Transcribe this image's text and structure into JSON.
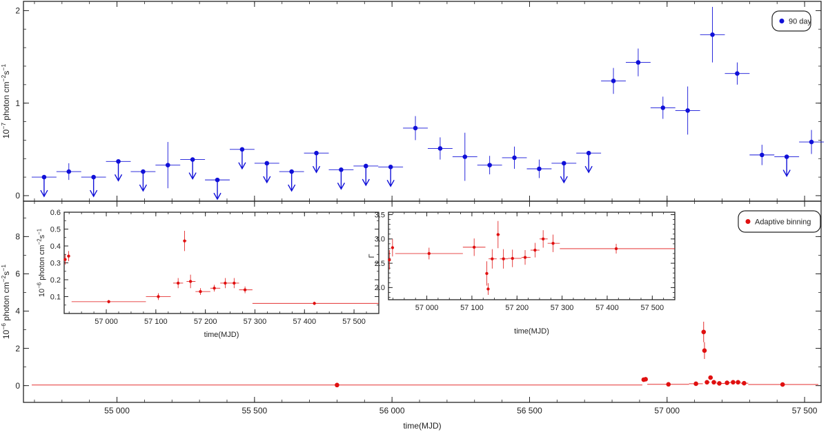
{
  "colors": {
    "blue": "#1010d8",
    "red": "#e01010",
    "axis": "#222222"
  },
  "chart_data": [
    {
      "id": "top",
      "type": "scatter",
      "legend": {
        "label": "90 day",
        "placement": "top-right"
      },
      "ylabel": {
        "prefix": "10",
        "exp": "−7",
        "text": " photon cm",
        "exp2": "−2",
        "mid": "s",
        "exp3": "−1"
      },
      "xlim": [
        54660,
        57560
      ],
      "ylim": [
        -0.06,
        2.1
      ],
      "yticks": [
        {
          "v": 0,
          "t": "0"
        },
        {
          "v": 1,
          "t": "1"
        },
        {
          "v": 2,
          "t": "2"
        }
      ],
      "series": [
        {
          "points": [
            {
              "x": 54735,
              "y": 0.2,
              "dx": 45,
              "ul": true
            },
            {
              "x": 54825,
              "y": 0.26,
              "dx": 45,
              "ey": 0.09
            },
            {
              "x": 54915,
              "y": 0.2,
              "dx": 45,
              "ul": true
            },
            {
              "x": 55005,
              "y": 0.37,
              "dx": 45,
              "ul": true
            },
            {
              "x": 55095,
              "y": 0.26,
              "dx": 45,
              "ul": true
            },
            {
              "x": 55185,
              "y": 0.33,
              "dx": 45,
              "ey": 0.25
            },
            {
              "x": 55275,
              "y": 0.39,
              "dx": 45,
              "ul": true
            },
            {
              "x": 55365,
              "y": 0.17,
              "dx": 45,
              "ul": true
            },
            {
              "x": 55455,
              "y": 0.5,
              "dx": 45,
              "ul": true
            },
            {
              "x": 55545,
              "y": 0.35,
              "dx": 45,
              "ul": true
            },
            {
              "x": 55635,
              "y": 0.26,
              "dx": 45,
              "ul": true
            },
            {
              "x": 55725,
              "y": 0.46,
              "dx": 45,
              "ul": true
            },
            {
              "x": 55815,
              "y": 0.28,
              "dx": 45,
              "ul": true
            },
            {
              "x": 55905,
              "y": 0.32,
              "dx": 45,
              "ul": true
            },
            {
              "x": 55995,
              "y": 0.31,
              "dx": 45,
              "ul": true
            },
            {
              "x": 56085,
              "y": 0.73,
              "dx": 45,
              "ey": 0.13
            },
            {
              "x": 56175,
              "y": 0.51,
              "dx": 45,
              "ey": 0.12
            },
            {
              "x": 56265,
              "y": 0.42,
              "dx": 45,
              "ey": 0.26
            },
            {
              "x": 56355,
              "y": 0.33,
              "dx": 45,
              "ey": 0.1
            },
            {
              "x": 56445,
              "y": 0.41,
              "dx": 45,
              "ey": 0.12
            },
            {
              "x": 56535,
              "y": 0.29,
              "dx": 45,
              "ey": 0.1
            },
            {
              "x": 56625,
              "y": 0.35,
              "dx": 45,
              "ul": true
            },
            {
              "x": 56715,
              "y": 0.46,
              "dx": 45,
              "ul": true
            },
            {
              "x": 56805,
              "y": 1.24,
              "dx": 45,
              "ey": 0.14
            },
            {
              "x": 56895,
              "y": 1.44,
              "dx": 45,
              "ey": 0.15
            },
            {
              "x": 56985,
              "y": 0.95,
              "dx": 45,
              "ey": 0.12
            },
            {
              "x": 57075,
              "y": 0.92,
              "dx": 45,
              "ey": 0.26
            },
            {
              "x": 57165,
              "y": 1.74,
              "dx": 45,
              "ey": 0.3
            },
            {
              "x": 57255,
              "y": 1.32,
              "dx": 45,
              "ey": 0.12
            },
            {
              "x": 57345,
              "y": 0.44,
              "dx": 45,
              "ey": 0.11
            },
            {
              "x": 57435,
              "y": 0.42,
              "dx": 45,
              "ul": true
            },
            {
              "x": 57525,
              "y": 0.58,
              "dx": 45,
              "ey": 0.13
            }
          ]
        }
      ]
    },
    {
      "id": "bottom",
      "type": "scatter",
      "legend": {
        "label": "Adaptive binning",
        "placement": "top-right"
      },
      "ylabel": {
        "prefix": "10",
        "exp": "−6",
        "text": " photon cm",
        "exp2": "−2",
        "mid": "s",
        "exp3": "−1"
      },
      "xlabel": "time(MJD)",
      "xlim": [
        54660,
        57560
      ],
      "ylim": [
        -0.9,
        9.9
      ],
      "yticks": [
        {
          "v": 0,
          "t": "0"
        },
        {
          "v": 2,
          "t": "2"
        },
        {
          "v": 4,
          "t": "4"
        },
        {
          "v": 6,
          "t": "6"
        },
        {
          "v": 8,
          "t": "8"
        }
      ],
      "xticks": [
        {
          "v": 55000,
          "t": "55 000"
        },
        {
          "v": 55500,
          "t": "55 500"
        },
        {
          "v": 56000,
          "t": "56 000"
        },
        {
          "v": 56500,
          "t": "56 500"
        },
        {
          "v": 57000,
          "t": "57 000"
        },
        {
          "v": 57500,
          "t": "57 500"
        }
      ],
      "series": [
        {
          "points": [
            {
              "x": 55800,
              "y": 0.03,
              "x0": 54690,
              "x1": 56910
            },
            {
              "x": 56915,
              "y": 0.32,
              "x0": 56913,
              "x1": 56917
            },
            {
              "x": 56922,
              "y": 0.34,
              "x0": 56919,
              "x1": 56925
            },
            {
              "x": 57005,
              "y": 0.07,
              "x0": 56928,
              "x1": 57080
            },
            {
              "x": 57105,
              "y": 0.1,
              "x0": 57080,
              "x1": 57130
            },
            {
              "x": 57133,
              "y": 2.88,
              "x0": 57131,
              "x1": 57135,
              "ey": 0.55
            },
            {
              "x": 57136,
              "y": 1.88,
              "x0": 57135,
              "x1": 57137,
              "ey": 0.45
            },
            {
              "x": 57145,
              "y": 0.18,
              "x0": 57137,
              "x1": 57155
            },
            {
              "x": 57158,
              "y": 0.43,
              "x0": 57155,
              "x1": 57162
            },
            {
              "x": 57170,
              "y": 0.18,
              "x0": 57162,
              "x1": 57180
            },
            {
              "x": 57190,
              "y": 0.12,
              "x0": 57180,
              "x1": 57210
            },
            {
              "x": 57218,
              "y": 0.15,
              "x0": 57210,
              "x1": 57230
            },
            {
              "x": 57240,
              "y": 0.18,
              "x0": 57230,
              "x1": 57250
            },
            {
              "x": 57258,
              "y": 0.18,
              "x0": 57250,
              "x1": 57268
            },
            {
              "x": 57280,
              "y": 0.13,
              "x0": 57268,
              "x1": 57295
            },
            {
              "x": 57420,
              "y": 0.06,
              "x0": 57295,
              "x1": 57550
            }
          ]
        }
      ]
    },
    {
      "id": "inset-flux",
      "type": "scatter",
      "ylabel": {
        "prefix": "10",
        "exp": "−6",
        "text": " photon cm",
        "exp2": "−2",
        "mid": "s",
        "exp3": "−1"
      },
      "xlabel": "time(MJD)",
      "xlim": [
        56915,
        57550
      ],
      "ylim": [
        0,
        0.6
      ],
      "yticks": [
        {
          "v": 0.1,
          "t": "0.1"
        },
        {
          "v": 0.2,
          "t": "0.2"
        },
        {
          "v": 0.3,
          "t": "0.3"
        },
        {
          "v": 0.4,
          "t": "0.4"
        },
        {
          "v": 0.5,
          "t": "0.5"
        },
        {
          "v": 0.6,
          "t": "0.6"
        }
      ],
      "xticks": [
        {
          "v": 57000,
          "t": "57 000"
        },
        {
          "v": 57100,
          "t": "57 100"
        },
        {
          "v": 57200,
          "t": "57 200"
        },
        {
          "v": 57300,
          "t": "57 300"
        },
        {
          "v": 57400,
          "t": "57 400"
        },
        {
          "v": 57500,
          "t": "57 500"
        }
      ],
      "series": [
        {
          "points": [
            {
              "x": 56917,
              "y": 0.32,
              "x0": 56915,
              "x1": 56919,
              "ey": 0.03
            },
            {
              "x": 56924,
              "y": 0.34,
              "x0": 56921,
              "x1": 56927,
              "ey": 0.03
            },
            {
              "x": 57005,
              "y": 0.07,
              "x0": 56930,
              "x1": 57080,
              "ey": 0.01
            },
            {
              "x": 57105,
              "y": 0.1,
              "x0": 57080,
              "x1": 57130,
              "ey": 0.02
            },
            {
              "x": 57145,
              "y": 0.18,
              "x0": 57135,
              "x1": 57155,
              "ey": 0.03
            },
            {
              "x": 57158,
              "y": 0.43,
              "x0": 57155,
              "x1": 57162,
              "ey": 0.06
            },
            {
              "x": 57170,
              "y": 0.19,
              "x0": 57162,
              "x1": 57180,
              "ey": 0.04
            },
            {
              "x": 57190,
              "y": 0.13,
              "x0": 57180,
              "x1": 57210,
              "ey": 0.02
            },
            {
              "x": 57218,
              "y": 0.15,
              "x0": 57210,
              "x1": 57230,
              "ey": 0.02
            },
            {
              "x": 57240,
              "y": 0.18,
              "x0": 57230,
              "x1": 57250,
              "ey": 0.03
            },
            {
              "x": 57258,
              "y": 0.18,
              "x0": 57250,
              "x1": 57268,
              "ey": 0.03
            },
            {
              "x": 57280,
              "y": 0.14,
              "x0": 57268,
              "x1": 57295,
              "ey": 0.02
            },
            {
              "x": 57420,
              "y": 0.06,
              "x0": 57295,
              "x1": 57550,
              "ey": 0.01
            }
          ]
        }
      ]
    },
    {
      "id": "inset-index",
      "type": "scatter",
      "ylabel": {
        "text": "Γ"
      },
      "xlabel": "time(MJD)",
      "xlim": [
        56915,
        57550
      ],
      "ylim": [
        1.75,
        3.55
      ],
      "yticks": [
        {
          "v": 2.0,
          "t": "2.0"
        },
        {
          "v": 2.5,
          "t": "2.5"
        },
        {
          "v": 3.0,
          "t": "3.0"
        },
        {
          "v": 3.5,
          "t": "3.5"
        }
      ],
      "xticks": [
        {
          "v": 57000,
          "t": "57 000"
        },
        {
          "v": 57100,
          "t": "57 100"
        },
        {
          "v": 57200,
          "t": "57 200"
        },
        {
          "v": 57300,
          "t": "57 300"
        },
        {
          "v": 57400,
          "t": "57 400"
        },
        {
          "v": 57500,
          "t": "57 500"
        }
      ],
      "series": [
        {
          "points": [
            {
              "x": 56917,
              "y": 2.57,
              "x0": 56915,
              "x1": 56919,
              "ey": 0.2
            },
            {
              "x": 56924,
              "y": 2.82,
              "x0": 56921,
              "x1": 56927,
              "ey": 0.18
            },
            {
              "x": 57005,
              "y": 2.7,
              "x0": 56930,
              "x1": 57080,
              "ey": 0.12
            },
            {
              "x": 57105,
              "y": 2.83,
              "x0": 57080,
              "x1": 57130,
              "ey": 0.18
            },
            {
              "x": 57133,
              "y": 2.29,
              "x0": 57131,
              "x1": 57135,
              "ey": 0.25
            },
            {
              "x": 57136,
              "y": 1.97,
              "x0": 57135,
              "x1": 57137,
              "ey": 0.12
            },
            {
              "x": 57145,
              "y": 2.59,
              "x0": 57137,
              "x1": 57155,
              "ey": 0.2
            },
            {
              "x": 57158,
              "y": 3.09,
              "x0": 57155,
              "x1": 57162,
              "ey": 0.28
            },
            {
              "x": 57170,
              "y": 2.59,
              "x0": 57162,
              "x1": 57180,
              "ey": 0.2
            },
            {
              "x": 57190,
              "y": 2.6,
              "x0": 57180,
              "x1": 57210,
              "ey": 0.18
            },
            {
              "x": 57218,
              "y": 2.62,
              "x0": 57210,
              "x1": 57230,
              "ey": 0.15
            },
            {
              "x": 57240,
              "y": 2.77,
              "x0": 57230,
              "x1": 57250,
              "ey": 0.15
            },
            {
              "x": 57258,
              "y": 3.0,
              "x0": 57250,
              "x1": 57268,
              "ey": 0.18
            },
            {
              "x": 57280,
              "y": 2.91,
              "x0": 57268,
              "x1": 57295,
              "ey": 0.18
            },
            {
              "x": 57420,
              "y": 2.8,
              "x0": 57295,
              "x1": 57550,
              "ey": 0.1
            }
          ]
        }
      ]
    }
  ]
}
